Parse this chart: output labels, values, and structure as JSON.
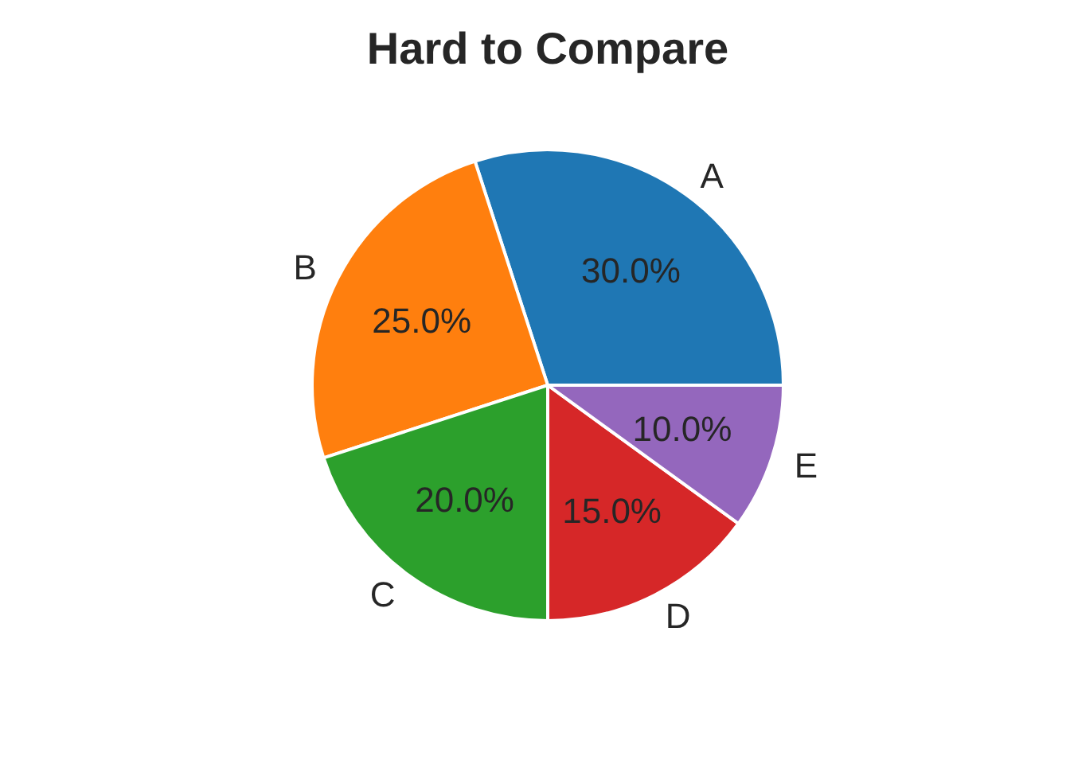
{
  "chart_data": {
    "type": "pie",
    "title": "Hard to Compare",
    "categories": [
      "A",
      "B",
      "C",
      "D",
      "E"
    ],
    "values": [
      30,
      25,
      20,
      15,
      10
    ],
    "colors": [
      "#1f77b4",
      "#ff7f0e",
      "#2ca02c",
      "#d62728",
      "#9467bd"
    ],
    "value_labels": [
      "30.0%",
      "25.0%",
      "20.0%",
      "15.0%",
      "10.0%"
    ]
  }
}
